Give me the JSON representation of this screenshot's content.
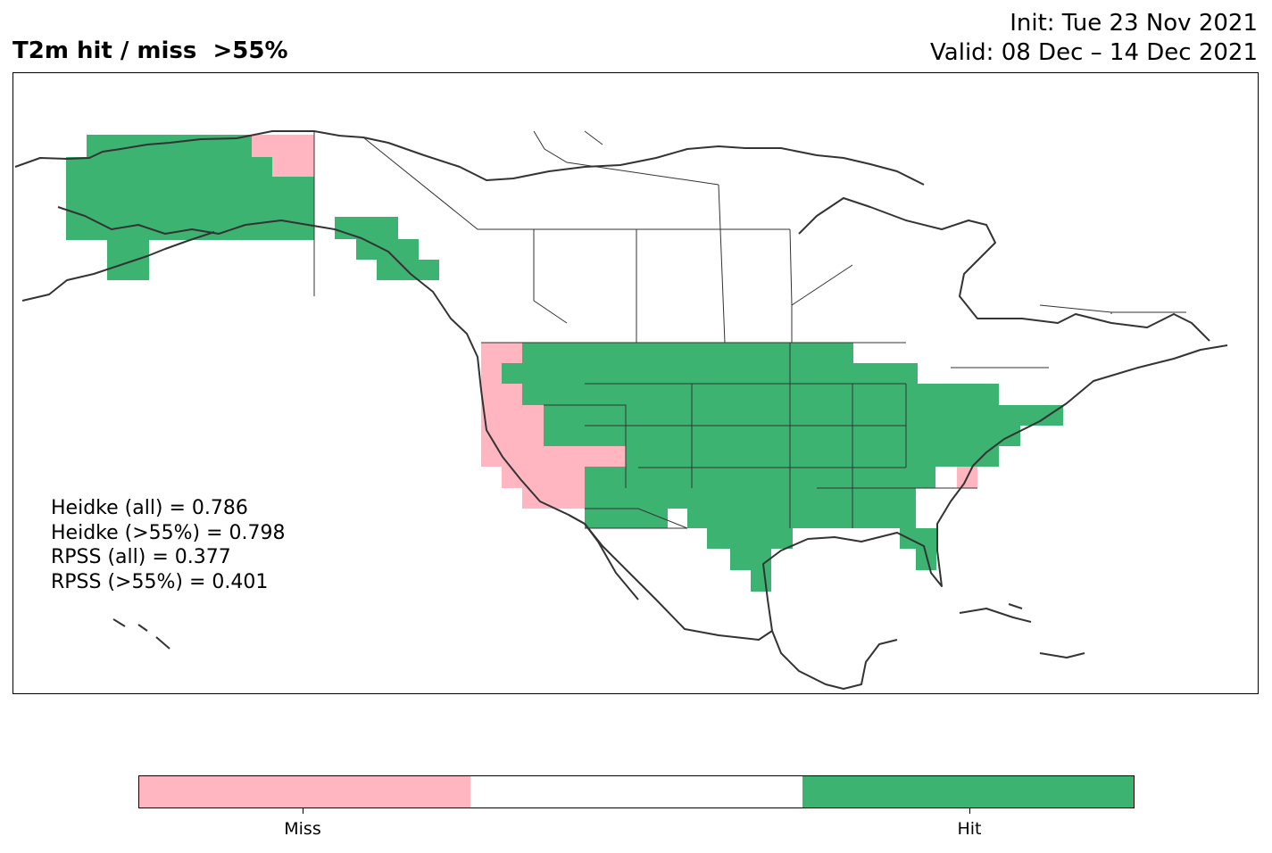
{
  "header": {
    "title": "T2m hit / miss  >55%",
    "init": "Init: Tue 23 Nov 2021",
    "valid": "Valid: 08 Dec – 14 Dec 2021"
  },
  "scores": [
    "Heidke (all) = 0.786",
    "Heidke (>55%) = 0.798",
    "RPSS (all) = 0.377",
    "RPSS (>55%) = 0.401"
  ],
  "legend": {
    "miss_label": "Miss",
    "hit_label": "Hit",
    "colors": {
      "miss": "#ffb6c1",
      "neutral": "#ffffff",
      "hit": "#3cb371"
    }
  },
  "map": {
    "region": "North America",
    "categories": [
      "Miss",
      "Hit"
    ],
    "coastline_color": "#333333"
  }
}
